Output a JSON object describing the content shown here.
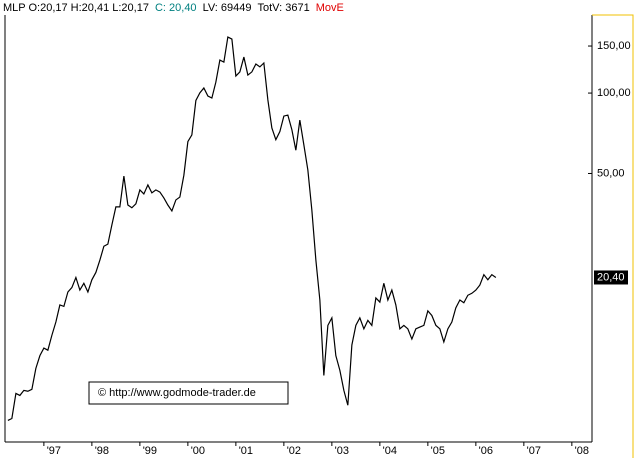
{
  "chart_data": {
    "type": "line",
    "header": [
      {
        "text": "MLP O:20,17 H:20,41 L:20,17",
        "color": "#000000"
      },
      {
        "text": "C: 20,40",
        "color": "#008080"
      },
      {
        "text": "LV: 69449",
        "color": "#000000"
      },
      {
        "text": "TotV: 3671",
        "color": "#000000"
      },
      {
        "text": "MovE",
        "color": "#e00000"
      }
    ],
    "watermark": "© http://www.godmode-trader.de",
    "color": "#000000",
    "log_scale": true,
    "grid": false,
    "x": [
      1996.25,
      1996.333,
      1996.417,
      1996.5,
      1996.583,
      1996.667,
      1996.75,
      1996.833,
      1996.917,
      1997,
      1997.083,
      1997.167,
      1997.25,
      1997.333,
      1997.417,
      1997.5,
      1997.583,
      1997.667,
      1997.75,
      1997.833,
      1997.917,
      1998,
      1998.083,
      1998.167,
      1998.25,
      1998.333,
      1998.417,
      1998.5,
      1998.583,
      1998.667,
      1998.75,
      1998.833,
      1998.917,
      1999,
      1999.083,
      1999.167,
      1999.25,
      1999.333,
      1999.417,
      1999.5,
      1999.583,
      1999.667,
      1999.75,
      1999.833,
      1999.917,
      2000,
      2000.083,
      2000.167,
      2000.25,
      2000.333,
      2000.417,
      2000.5,
      2000.583,
      2000.667,
      2000.75,
      2000.833,
      2000.917,
      2001,
      2001.083,
      2001.167,
      2001.25,
      2001.333,
      2001.417,
      2001.5,
      2001.583,
      2001.667,
      2001.75,
      2001.833,
      2001.917,
      2002,
      2002.083,
      2002.167,
      2002.25,
      2002.333,
      2002.417,
      2002.5,
      2002.583,
      2002.667,
      2002.75,
      2002.833,
      2002.917,
      2003,
      2003.083,
      2003.167,
      2003.25,
      2003.333,
      2003.417,
      2003.5,
      2003.583,
      2003.667,
      2003.75,
      2003.833,
      2003.917,
      2004,
      2004.083,
      2004.167,
      2004.25,
      2004.333,
      2004.417,
      2004.5,
      2004.583,
      2004.667,
      2004.75,
      2004.833,
      2004.917,
      2005,
      2005.083,
      2005.167,
      2005.25,
      2005.333,
      2005.417,
      2005.5,
      2005.583,
      2005.667,
      2005.75,
      2005.833,
      2005.917,
      2006,
      2006.083,
      2006.167,
      2006.25,
      2006.333,
      2006.417
    ],
    "values": [
      5.95,
      6.05,
      7.51,
      7.38,
      7.71,
      7.65,
      7.78,
      9.32,
      10.4,
      11.1,
      10.9,
      12.4,
      13.9,
      16.1,
      15.9,
      18.0,
      18.7,
      20.4,
      18.3,
      19.4,
      18.0,
      20.0,
      21.3,
      23.7,
      26.7,
      27.2,
      32.1,
      37.5,
      37.5,
      48.9,
      38.1,
      37.2,
      38.5,
      43.4,
      41.9,
      45.3,
      42.3,
      43.4,
      42.6,
      40.5,
      38.1,
      36.2,
      39.8,
      40.8,
      49.3,
      65.8,
      69.7,
      93.8,
      100.2,
      104.5,
      97.5,
      95.8,
      109.9,
      132.9,
      130.6,
      162.1,
      159.3,
      115.8,
      120.0,
      136.4,
      116.8,
      120.0,
      128.5,
      125.3,
      129.6,
      94.2,
      74.0,
      66.9,
      71.8,
      82.0,
      82.7,
      72.9,
      61.1,
      79.2,
      63.9,
      51.5,
      36.5,
      23.7,
      16.8,
      8.77,
      13.5,
      14.4,
      10.4,
      9.16,
      7.71,
      6.78,
      11.4,
      13.5,
      14.4,
      13.1,
      14.1,
      13.5,
      17.1,
      16.5,
      19.4,
      16.8,
      18.3,
      16.1,
      13.1,
      13.5,
      13.1,
      12.0,
      13.1,
      13.3,
      13.5,
      15.3,
      14.7,
      13.5,
      13.1,
      11.7,
      13.1,
      13.9,
      15.7,
      16.8,
      16.4,
      17.5,
      17.8,
      18.3,
      19.1,
      20.9,
      20.0,
      20.9,
      20.4
    ],
    "last_label": {
      "value": 20.4,
      "label": "20,40"
    },
    "xlim": [
      1996.19,
      2008.42
    ],
    "ylim": [
      4.94,
      196
    ],
    "yticks": [
      {
        "value": 150,
        "label": "150,00"
      },
      {
        "value": 100,
        "label": "100,00"
      },
      {
        "value": 50,
        "label": "50,00"
      }
    ],
    "xticks": [
      {
        "value": 1997,
        "label": "'97"
      },
      {
        "value": 1998,
        "label": "'98"
      },
      {
        "value": 1999,
        "label": "'99"
      },
      {
        "value": 2000,
        "label": "'00"
      },
      {
        "value": 2001,
        "label": "'01"
      },
      {
        "value": 2002,
        "label": "'02"
      },
      {
        "value": 2003,
        "label": "'03"
      },
      {
        "value": 2004,
        "label": "'04"
      },
      {
        "value": 2005,
        "label": "'05"
      },
      {
        "value": 2006,
        "label": "'06"
      },
      {
        "value": 2007,
        "label": "'07"
      },
      {
        "value": 2008,
        "label": "'08"
      }
    ]
  }
}
